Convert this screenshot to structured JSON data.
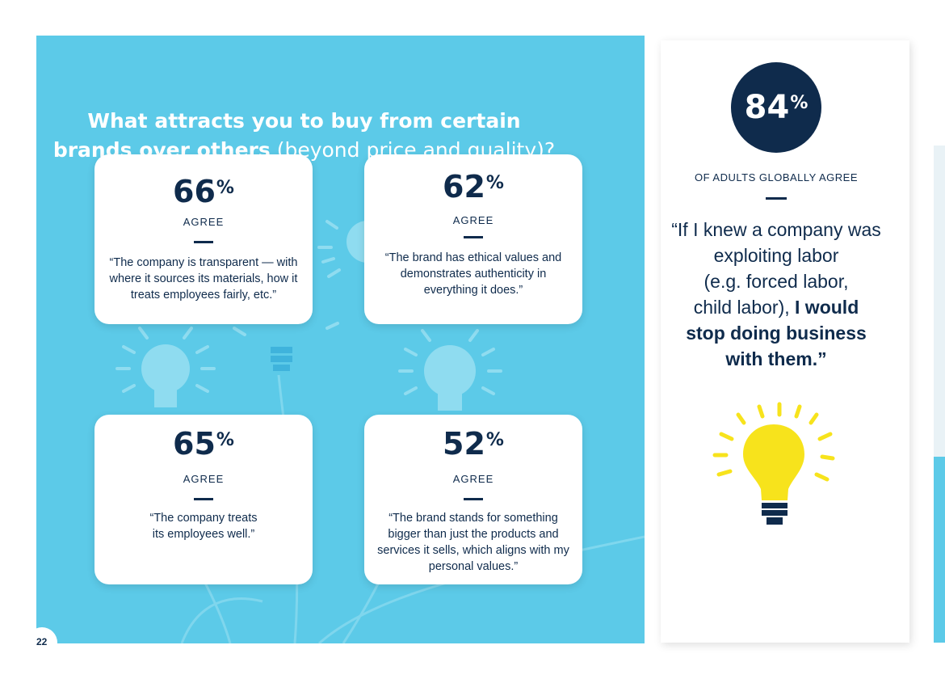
{
  "title": {
    "line1": "What attracts you to buy from certain",
    "line2_bold": "brands over others",
    "line2_light": " (beyond price and quality)?"
  },
  "cards": [
    {
      "value": "66",
      "unit": "%",
      "agree": "AGREE",
      "quote": "“The company is transparent — with where it sources its materials, how it treats employees fairly, etc.”"
    },
    {
      "value": "62",
      "unit": "%",
      "agree": "AGREE",
      "quote": "“The brand has ethical values and demonstrates authenticity in everything it does.”"
    },
    {
      "value": "65",
      "unit": "%",
      "agree": "AGREE",
      "quote": "“The company treats its employees well.”"
    },
    {
      "value": "52",
      "unit": "%",
      "agree": "AGREE",
      "quote": "“The brand stands for something bigger than just the products and services it sells, which aligns with my personal values.”"
    }
  ],
  "side": {
    "value": "84",
    "unit": "%",
    "caption": "OF ADULTS GLOBALLY AGREE",
    "quote_lines": [
      "“If I knew a company was",
      "exploiting labor",
      "(e.g. forced labor,"
    ],
    "quote_mixed_normal": "child labor), ",
    "quote_mixed_bold": "I would",
    "quote_bold_lines": [
      "stop doing business",
      "with them.”"
    ]
  },
  "page_number": "22",
  "colors": {
    "panel_blue": "#5ccae8",
    "navy": "#0f2b4c",
    "bulb_yellow": "#f7e31c",
    "deco_light": "#8fdcf0"
  },
  "icons": [
    "lightbulb-icon"
  ]
}
